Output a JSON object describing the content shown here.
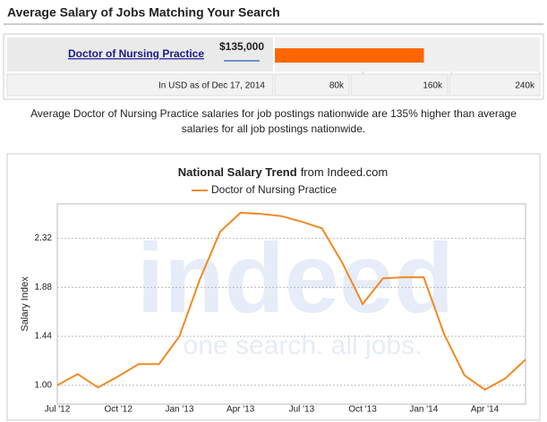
{
  "header": {
    "title": "Average Salary of Jobs Matching Your Search"
  },
  "summary": "Average Doctor of Nursing Practice salaries for job postings nationwide are 135% higher than average salaries for all job postings nationwide.",
  "chart_data": [
    {
      "type": "hbar",
      "categories": [
        "Doctor of Nursing Practice"
      ],
      "values": [
        135000
      ],
      "value_labels": [
        "$135,000"
      ],
      "color": "#ff6600",
      "note": "In USD as of Dec 17, 2014",
      "xlim": [
        0,
        240000
      ],
      "xticks": [
        {
          "value": 80000,
          "label": "80k"
        },
        {
          "value": 160000,
          "label": "160k"
        },
        {
          "value": 240000,
          "label": "240k"
        }
      ]
    },
    {
      "type": "line",
      "title": "National Salary Trend",
      "subtitle": "from Indeed.com",
      "y_label": "Salary Index",
      "grid": true,
      "watermark": {
        "logo": "indeed",
        "tagline": "one search. all jobs."
      },
      "categories": [
        "Jul '12",
        null,
        null,
        "Oct '12",
        null,
        null,
        "Jan '13",
        null,
        null,
        "Apr '13",
        null,
        null,
        "Jul '13",
        null,
        null,
        "Oct '13",
        null,
        null,
        "Jan '14",
        null,
        null,
        "Apr '14",
        null,
        null
      ],
      "ylim": [
        0.83,
        2.63
      ],
      "yticks": [
        {
          "value": 1,
          "label": "1.00"
        },
        1.44,
        1.88,
        2.32
      ],
      "series": [
        {
          "name": "Doctor of Nursing Practice",
          "color": "#f08a24",
          "values": [
            1.0,
            1.1,
            0.98,
            1.08,
            1.19,
            1.19,
            1.44,
            1.95,
            2.38,
            2.55,
            2.54,
            2.52,
            2.47,
            2.41,
            2.1,
            1.73,
            1.96,
            1.97,
            1.97,
            1.46,
            1.09,
            0.96,
            1.06,
            1.23
          ]
        }
      ]
    }
  ]
}
